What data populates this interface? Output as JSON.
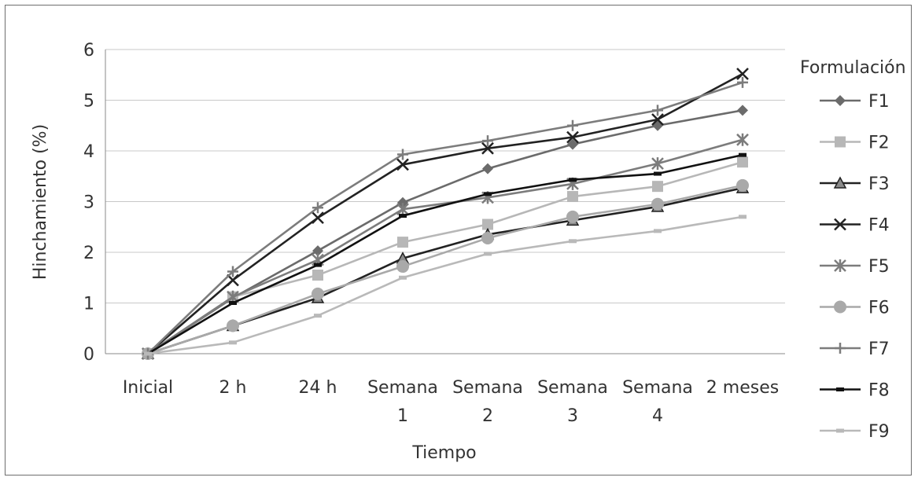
{
  "chart_data": {
    "type": "line",
    "xlabel": "Tiempo",
    "ylabel": "Hinchamiento (%)",
    "ylim": [
      0,
      6
    ],
    "yticks": [
      "0",
      "1",
      "2",
      "3",
      "4",
      "5",
      "6"
    ],
    "grid": true,
    "legend_title": "Formulación",
    "legend_position": "right",
    "categories": [
      [
        "Inicial"
      ],
      [
        "2 h"
      ],
      [
        "24 h"
      ],
      [
        "Semana",
        "1"
      ],
      [
        "Semana",
        "2"
      ],
      [
        "Semana",
        "3"
      ],
      [
        "Semana",
        "4"
      ],
      [
        "2 meses"
      ]
    ],
    "series": [
      {
        "name": "F1",
        "color": "#6b6b6b",
        "marker": "diamond",
        "values": [
          0,
          1.1,
          2.03,
          2.98,
          3.65,
          4.13,
          4.5,
          4.8
        ]
      },
      {
        "name": "F2",
        "color": "#b7b7b7",
        "marker": "square",
        "values": [
          0,
          1.12,
          1.55,
          2.2,
          2.55,
          3.1,
          3.3,
          3.78
        ]
      },
      {
        "name": "F3",
        "color": "#222222",
        "marker": "triangle",
        "values": [
          0,
          0.55,
          1.1,
          1.88,
          2.35,
          2.63,
          2.9,
          3.27
        ]
      },
      {
        "name": "F4",
        "color": "#222222",
        "marker": "x",
        "values": [
          0,
          1.45,
          2.68,
          3.73,
          4.05,
          4.27,
          4.62,
          5.52
        ]
      },
      {
        "name": "F5",
        "color": "#7c7c7c",
        "marker": "star",
        "values": [
          0,
          1.12,
          1.85,
          2.85,
          3.08,
          3.35,
          3.75,
          4.22
        ]
      },
      {
        "name": "F6",
        "color": "#a9a9a9",
        "marker": "circle",
        "values": [
          0,
          0.55,
          1.18,
          1.72,
          2.28,
          2.7,
          2.95,
          3.32
        ]
      },
      {
        "name": "F7",
        "color": "#7c7c7c",
        "marker": "plus",
        "values": [
          0,
          1.62,
          2.88,
          3.93,
          4.2,
          4.5,
          4.8,
          5.35
        ]
      },
      {
        "name": "F8",
        "color": "#111111",
        "marker": "dash",
        "values": [
          0,
          1.0,
          1.75,
          2.72,
          3.15,
          3.43,
          3.55,
          3.92
        ]
      },
      {
        "name": "F9",
        "color": "#b9b9b9",
        "marker": "dash",
        "values": [
          0,
          0.22,
          0.75,
          1.5,
          1.97,
          2.22,
          2.42,
          2.7
        ]
      }
    ]
  }
}
